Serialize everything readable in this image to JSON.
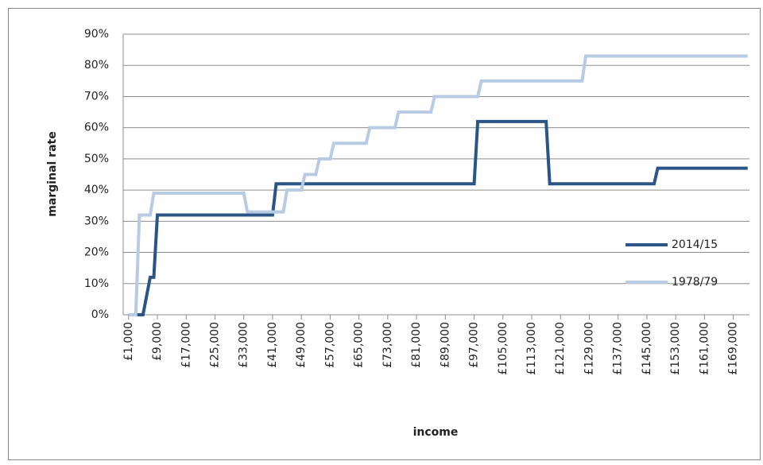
{
  "chart_data": {
    "type": "line",
    "x_label": "income",
    "y_label": "marginal rate",
    "xlim": [
      -500,
      173500
    ],
    "ylim": [
      0,
      90
    ],
    "xticks": [
      {
        "value": 1000,
        "label": "£1,000"
      },
      {
        "value": 9000,
        "label": "£9,000"
      },
      {
        "value": 17000,
        "label": "£17,000"
      },
      {
        "value": 25000,
        "label": "£25,000"
      },
      {
        "value": 33000,
        "label": "£33,000"
      },
      {
        "value": 41000,
        "label": "£41,000"
      },
      {
        "value": 49000,
        "label": "£49,000"
      },
      {
        "value": 57000,
        "label": "£57,000"
      },
      {
        "value": 65000,
        "label": "£65,000"
      },
      {
        "value": 73000,
        "label": "£73,000"
      },
      {
        "value": 81000,
        "label": "£81,000"
      },
      {
        "value": 89000,
        "label": "£89,000"
      },
      {
        "value": 97000,
        "label": "£97,000"
      },
      {
        "value": 105000,
        "label": "£105,000"
      },
      {
        "value": 113000,
        "label": "£113,000"
      },
      {
        "value": 121000,
        "label": "£121,000"
      },
      {
        "value": 129000,
        "label": "£129,000"
      },
      {
        "value": 137000,
        "label": "£137,000"
      },
      {
        "value": 145000,
        "label": "£145,000"
      },
      {
        "value": 153000,
        "label": "£153,000"
      },
      {
        "value": 161000,
        "label": "£161,000"
      },
      {
        "value": 169000,
        "label": "£169,000"
      }
    ],
    "yticks": [
      {
        "value": 0,
        "label": "0%"
      },
      {
        "value": 10,
        "label": "10%"
      },
      {
        "value": 20,
        "label": "20%"
      },
      {
        "value": 30,
        "label": "30%"
      },
      {
        "value": 40,
        "label": "40%"
      },
      {
        "value": 50,
        "label": "50%"
      },
      {
        "value": 60,
        "label": "60%"
      },
      {
        "value": 70,
        "label": "70%"
      },
      {
        "value": 80,
        "label": "80%"
      },
      {
        "value": 90,
        "label": "90%"
      }
    ],
    "grid": true,
    "legend": "right",
    "series": [
      {
        "name": "2014/15",
        "color": "#2b5587",
        "x": [
          1000,
          5000,
          7000,
          8000,
          9000,
          41000,
          42000,
          97000,
          98000,
          117000,
          118000,
          147000,
          148000,
          173000
        ],
        "values": [
          0,
          0,
          12,
          12,
          32,
          32,
          42,
          42,
          62,
          62,
          42,
          42,
          47,
          47
        ]
      },
      {
        "name": "1978/79",
        "color": "#b7cbe4",
        "x": [
          1000,
          3000,
          4000,
          7000,
          8000,
          33000,
          34000,
          44000,
          45000,
          49000,
          50000,
          53000,
          54000,
          57000,
          58000,
          67000,
          68000,
          75000,
          76000,
          85000,
          86000,
          98000,
          99000,
          127000,
          128000,
          173000
        ],
        "values": [
          0,
          0,
          32,
          32,
          39,
          39,
          33,
          33,
          40,
          40,
          45,
          45,
          50,
          50,
          55,
          55,
          60,
          60,
          65,
          65,
          70,
          70,
          75,
          75,
          83,
          83
        ]
      }
    ]
  }
}
